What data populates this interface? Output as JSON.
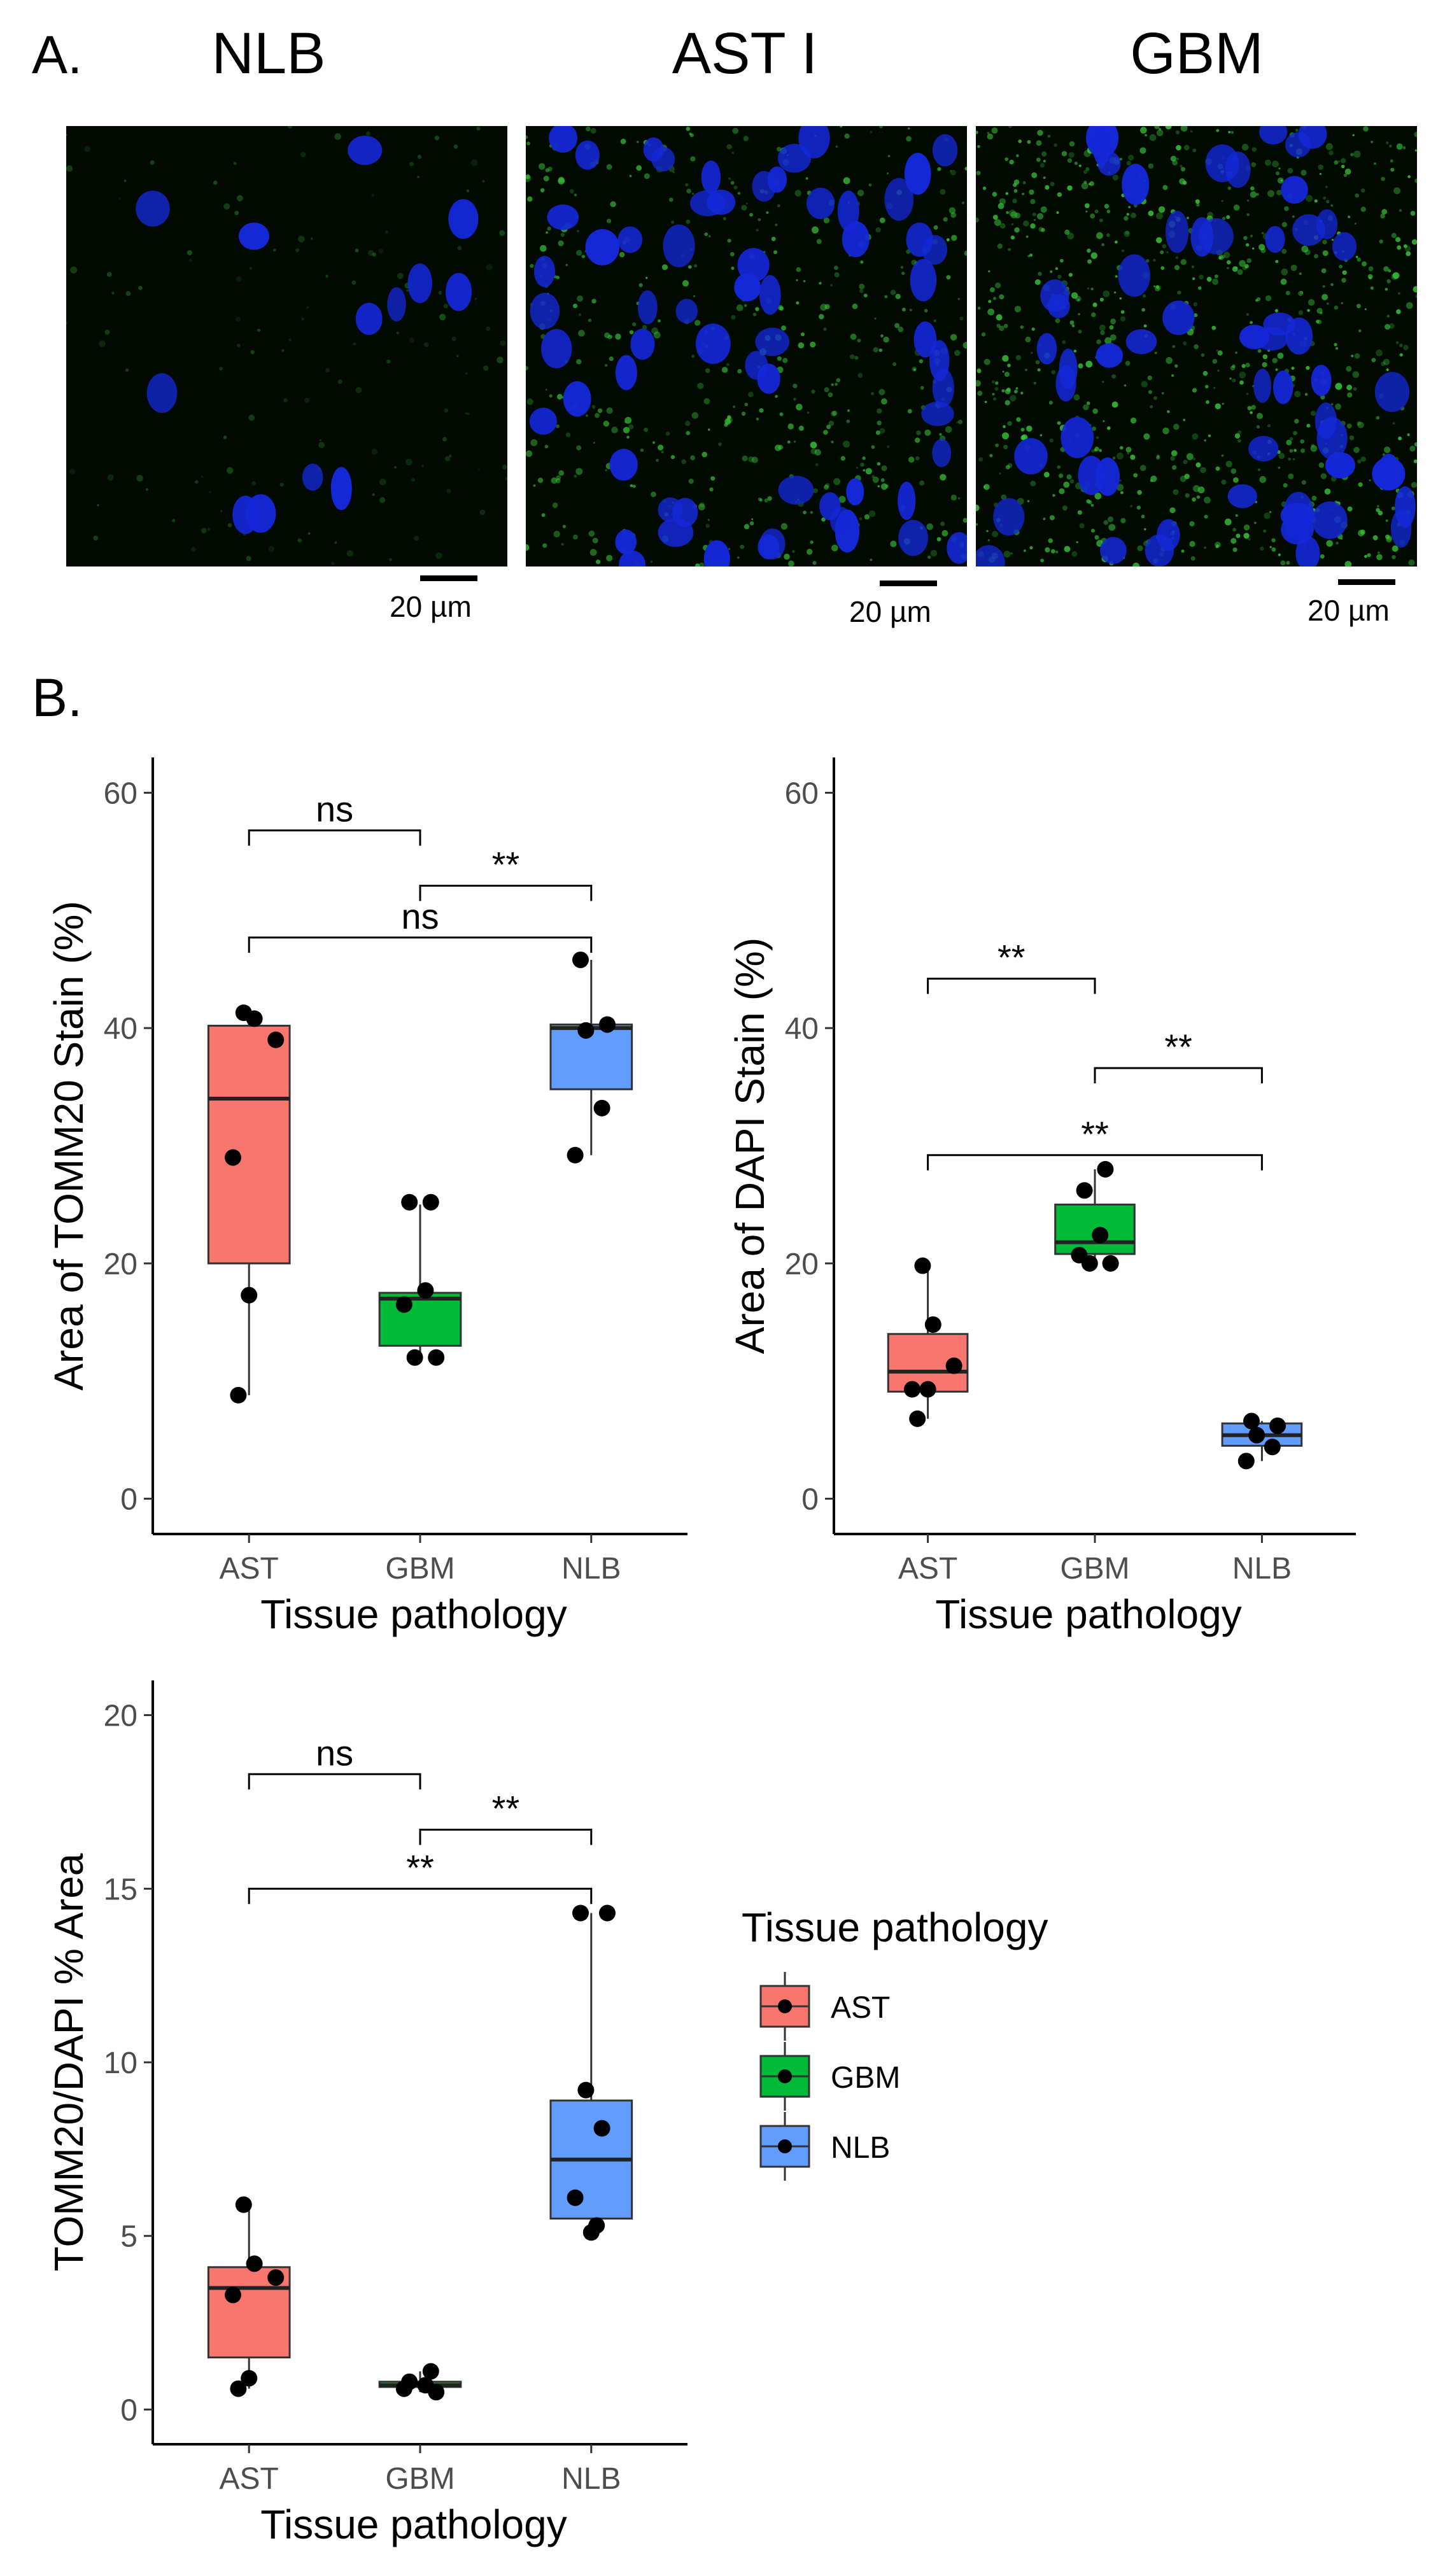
{
  "panel_a": {
    "label": "A.",
    "columns": [
      "NLB",
      "AST I",
      "GBM"
    ],
    "scale_bar": "20 µm"
  },
  "panel_b": {
    "label": "B."
  },
  "colors": {
    "AST": "#F8766D",
    "GBM": "#00BA38",
    "NLB": "#619CFF",
    "nucleus": "#1428d8",
    "mito": "#3cc83c"
  },
  "legend": {
    "title": "Tissue pathology",
    "items": [
      "AST",
      "GBM",
      "NLB"
    ]
  },
  "chart_data": [
    {
      "type": "box",
      "title": "",
      "xlabel": "Tissue pathology",
      "ylabel": "Area of TOMM20 Stain (%)",
      "ylim": [
        -3,
        63
      ],
      "yticks": [
        0,
        20,
        40,
        60
      ],
      "categories": [
        "AST",
        "GBM",
        "NLB"
      ],
      "boxes": [
        {
          "group": "AST",
          "q1": 20,
          "median": 34,
          "q3": 40.2,
          "whisker_low": 8.8,
          "whisker_high": 41.5
        },
        {
          "group": "GBM",
          "q1": 13,
          "median": 17,
          "q3": 17.5,
          "whisker_low": 12,
          "whisker_high": 25
        },
        {
          "group": "NLB",
          "q1": 34.8,
          "median": 40,
          "q3": 40.3,
          "whisker_low": 29.2,
          "whisker_high": 45.8
        }
      ],
      "points": [
        {
          "group": "AST",
          "values": [
            41.3,
            40.8,
            39,
            29,
            17.3,
            8.8
          ]
        },
        {
          "group": "GBM",
          "values": [
            25.2,
            25.2,
            17.7,
            16.5,
            12,
            12
          ]
        },
        {
          "group": "NLB",
          "values": [
            45.8,
            40.3,
            39.8,
            33.2,
            29.2
          ]
        }
      ],
      "comparisons": [
        {
          "from": "AST",
          "to": "GBM",
          "y": 56.8,
          "label": "ns"
        },
        {
          "from": "GBM",
          "to": "NLB",
          "y": 52.1,
          "label": "**"
        },
        {
          "from": "AST",
          "to": "NLB",
          "y": 47.7,
          "label": "ns"
        }
      ]
    },
    {
      "type": "box",
      "title": "",
      "xlabel": "Tissue pathology",
      "ylabel": "Area of DAPI Stain (%)",
      "ylim": [
        -3,
        63
      ],
      "yticks": [
        0,
        20,
        40,
        60
      ],
      "categories": [
        "AST",
        "GBM",
        "NLB"
      ],
      "boxes": [
        {
          "group": "AST",
          "q1": 9.1,
          "median": 10.8,
          "q3": 14,
          "whisker_low": 6.8,
          "whisker_high": 19.8
        },
        {
          "group": "GBM",
          "q1": 20.8,
          "median": 21.8,
          "q3": 25,
          "whisker_low": 20,
          "whisker_high": 28
        },
        {
          "group": "NLB",
          "q1": 4.5,
          "median": 5.4,
          "q3": 6.4,
          "whisker_low": 3.2,
          "whisker_high": 6.6
        }
      ],
      "points": [
        {
          "group": "AST",
          "values": [
            19.8,
            14.8,
            11.3,
            9.3,
            9.3,
            6.8
          ]
        },
        {
          "group": "GBM",
          "values": [
            28,
            26.2,
            22.4,
            20.7,
            20,
            20
          ]
        },
        {
          "group": "NLB",
          "values": [
            6.6,
            6.2,
            5.4,
            4.4,
            3.2
          ]
        }
      ],
      "comparisons": [
        {
          "from": "AST",
          "to": "GBM",
          "y": 44.2,
          "label": "**"
        },
        {
          "from": "GBM",
          "to": "NLB",
          "y": 36.6,
          "label": "**"
        },
        {
          "from": "AST",
          "to": "NLB",
          "y": 29.2,
          "label": "**"
        }
      ]
    },
    {
      "type": "box",
      "title": "",
      "xlabel": "Tissue pathology",
      "ylabel": "TOMM20/DAPI % Area",
      "ylim": [
        -1,
        21
      ],
      "yticks": [
        0,
        5,
        10,
        15,
        20
      ],
      "categories": [
        "AST",
        "GBM",
        "NLB"
      ],
      "boxes": [
        {
          "group": "AST",
          "q1": 1.5,
          "median": 3.5,
          "q3": 4.1,
          "whisker_low": 0.6,
          "whisker_high": 5.9
        },
        {
          "group": "GBM",
          "q1": 0.65,
          "median": 0.7,
          "q3": 0.8,
          "whisker_low": 0.5,
          "whisker_high": 1.1
        },
        {
          "group": "NLB",
          "q1": 5.5,
          "median": 7.2,
          "q3": 8.9,
          "whisker_low": 5.1,
          "whisker_high": 14.3
        }
      ],
      "points": [
        {
          "group": "AST",
          "values": [
            5.9,
            4.2,
            3.8,
            3.3,
            0.9,
            0.6
          ]
        },
        {
          "group": "GBM",
          "values": [
            1.1,
            0.8,
            0.7,
            0.6,
            0.5
          ]
        },
        {
          "group": "NLB",
          "values": [
            14.3,
            14.3,
            9.2,
            8.1,
            6.1,
            5.3,
            5.1
          ]
        }
      ],
      "comparisons": [
        {
          "from": "AST",
          "to": "GBM",
          "y": 18.3,
          "label": "ns"
        },
        {
          "from": "GBM",
          "to": "NLB",
          "y": 16.7,
          "label": "**"
        },
        {
          "from": "AST",
          "to": "NLB",
          "y": 15,
          "label": "**"
        }
      ]
    }
  ]
}
